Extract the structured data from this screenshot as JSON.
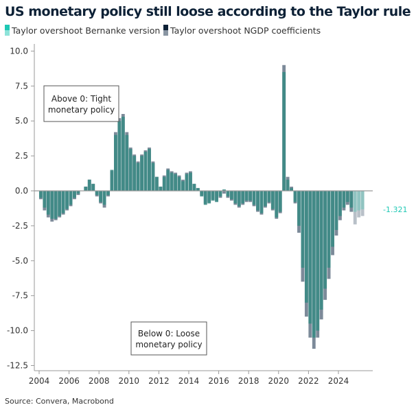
{
  "chart_data": {
    "type": "bar",
    "title": "US monetary policy still loose according to the Taylor rule",
    "source": "Source: Convera, Macrobond",
    "frequency": "quarterly",
    "x_start": "2004Q1",
    "forecast_from": "2025Q1",
    "xticks": [
      "2004",
      "2006",
      "2008",
      "2010",
      "2012",
      "2014",
      "2016",
      "2018",
      "2020",
      "2022",
      "2024"
    ],
    "yticks": [
      "10.0",
      "7.5",
      "5.0",
      "2.5",
      "0.0",
      "-2.5",
      "-5.0",
      "-7.5",
      "-10.0",
      "-12.5"
    ],
    "ylim": [
      -12.5,
      10
    ],
    "grid": false,
    "legend_placement": "top-left",
    "last_value_label": "-1.321",
    "annotations": [
      "Above 0: Tight monetary policy",
      "Below 0: Loose monetary policy"
    ],
    "series": [
      {
        "name": "Taylor overshoot NGDP coefficients",
        "color": "#0d2136",
        "bar_color": "#7c8a99",
        "forecast_color": "#b8c0c8",
        "values": [
          -0.6,
          -1.4,
          -1.9,
          -2.2,
          -2.1,
          -1.9,
          -1.7,
          -1.4,
          -1.1,
          -0.6,
          -0.3,
          0.0,
          0.3,
          0.8,
          0.5,
          -0.4,
          -0.9,
          -1.2,
          -0.4,
          1.4,
          4.2,
          5.2,
          5.5,
          4.2,
          3.1,
          2.6,
          2.1,
          2.6,
          2.9,
          3.1,
          2.1,
          1.0,
          0.3,
          1.1,
          1.6,
          1.4,
          1.3,
          1.1,
          0.8,
          1.3,
          1.4,
          0.5,
          0.2,
          -0.3,
          -0.9,
          -0.8,
          -0.6,
          -0.7,
          -0.5,
          -0.2,
          -0.5,
          -0.7,
          -1.0,
          -1.2,
          -1.0,
          -0.8,
          -0.8,
          -1.1,
          -1.5,
          -1.7,
          -1.2,
          -0.9,
          -1.4,
          -2.0,
          -1.6,
          9.0,
          1.0,
          0.3,
          -0.9,
          -3.0,
          -6.5,
          -9.0,
          -10.5,
          -11.3,
          -10.5,
          -9.2,
          -7.8,
          -6.3,
          -4.6,
          -3.2,
          -2.1,
          -1.4,
          -1.0,
          -1.5,
          -2.4,
          -1.9,
          -1.8
        ]
      },
      {
        "name": "Taylor overshoot Bernanke version",
        "color": "#1ec8b4",
        "bar_color": "#3d8a86",
        "forecast_color": "#8cc4c0",
        "values": [
          -0.5,
          -1.2,
          -1.7,
          -2.0,
          -2.0,
          -1.8,
          -1.6,
          -1.3,
          -1.0,
          -0.5,
          -0.2,
          0.0,
          0.3,
          0.8,
          0.5,
          -0.3,
          -0.8,
          -1.0,
          -0.3,
          1.5,
          4.0,
          5.0,
          5.3,
          4.0,
          3.0,
          2.5,
          2.0,
          2.5,
          2.8,
          3.0,
          2.0,
          1.0,
          0.3,
          1.0,
          1.5,
          1.3,
          1.2,
          1.0,
          0.7,
          1.2,
          1.3,
          0.5,
          0.2,
          -0.4,
          -1.0,
          -0.9,
          -0.7,
          -0.8,
          -0.4,
          0.1,
          -0.4,
          -0.6,
          -0.9,
          -1.1,
          -0.9,
          -0.7,
          -0.7,
          -1.0,
          -1.4,
          -1.6,
          -1.1,
          -0.8,
          -1.3,
          -1.9,
          -1.5,
          8.5,
          0.8,
          0.2,
          -0.8,
          -2.5,
          -5.5,
          -8.0,
          -9.5,
          -10.5,
          -10.0,
          -8.5,
          -7.0,
          -5.5,
          -4.0,
          -2.8,
          -1.8,
          -1.2,
          -0.8,
          -1.2,
          -1.5,
          -1.4,
          -1.321
        ]
      }
    ]
  }
}
